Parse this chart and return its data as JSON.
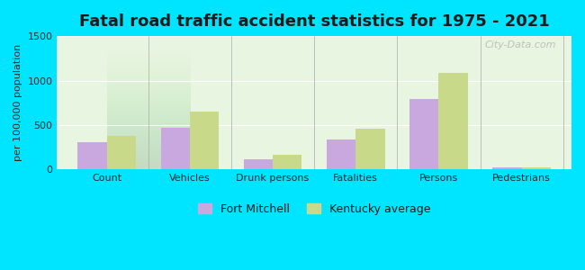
{
  "title": "Fatal road traffic accident statistics for 1975 - 2021",
  "ylabel": "per 100,000 population",
  "categories": [
    "Count",
    "Vehicles",
    "Drunk persons",
    "Fatalities",
    "Persons",
    "Pedestrians"
  ],
  "fort_mitchell": [
    305,
    470,
    120,
    340,
    790,
    20
  ],
  "kentucky_avg": [
    375,
    655,
    165,
    455,
    1090,
    22
  ],
  "ylim": [
    0,
    1500
  ],
  "yticks": [
    0,
    500,
    1000,
    1500
  ],
  "fort_mitchell_color": "#c9a8e0",
  "kentucky_color": "#c8d98a",
  "background_color": "#e8f5e0",
  "outer_background": "#00e5ff",
  "bar_width": 0.35,
  "legend_fort_mitchell": "Fort Mitchell",
  "legend_kentucky": "Kentucky average",
  "watermark": "City-Data.com"
}
